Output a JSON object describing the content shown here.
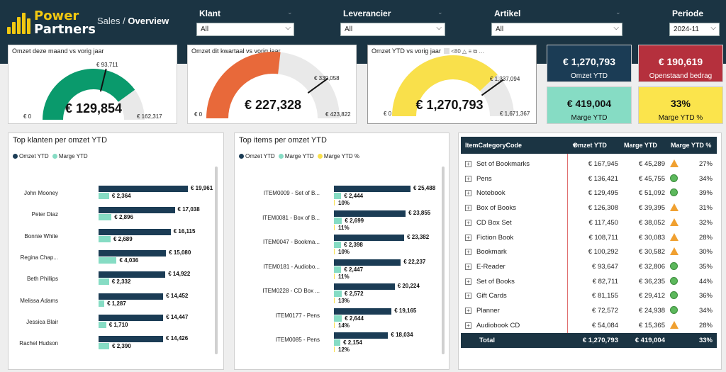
{
  "header": {
    "logo_line1": "Power",
    "logo_line2": "Partners",
    "breadcrumb_section": "Sales /",
    "breadcrumb_page": "Overview",
    "colors": {
      "bg": "#1b3443",
      "brand": "#f2c811"
    }
  },
  "filters": {
    "klant": {
      "label": "Klant",
      "value": "All"
    },
    "leverancier": {
      "label": "Leverancier",
      "value": "All"
    },
    "artikel": {
      "label": "Artikel",
      "value": "All"
    },
    "periode": {
      "label": "Periode",
      "value": "2024-11"
    }
  },
  "gauges": [
    {
      "title": "Omzet deze maand vs vorig jaar",
      "value": "€ 129,854",
      "target": "€ 93,711",
      "min": "€ 0",
      "max": "€ 162,317",
      "fraction": 0.8,
      "target_fraction": 0.577,
      "color": "#0a9a6c"
    },
    {
      "title": "Omzet dit kwartaal vs vorig jaar",
      "value": "€ 227,328",
      "target": "€ 339,058",
      "min": "€ 0",
      "max": "€ 423,822",
      "fraction": 0.536,
      "target_fraction": 0.8,
      "color": "#e8693a"
    },
    {
      "title": "Omzet YTD vs vorig jaar",
      "value": "€ 1,270,793",
      "target": "€ 1,337,094",
      "min": "€ 0",
      "max": "€ 1,671,367",
      "fraction": 0.76,
      "target_fraction": 0.8,
      "color": "#f9e04b",
      "toolbar_text": "<80"
    }
  ],
  "kpis": [
    {
      "value": "€ 1,270,793",
      "label": "Omzet YTD",
      "bg": "#1b3c55",
      "fg": "#ffffff"
    },
    {
      "value": "€ 190,619",
      "label": "Openstaand bedrag",
      "bg": "#b5303d",
      "fg": "#ffffff"
    },
    {
      "value": "€ 419,004",
      "label": "Marge YTD",
      "bg": "#86dcc4",
      "fg": "#111111"
    },
    {
      "value": "33%",
      "label": "Marge YTD %",
      "bg": "#fbe44c",
      "fg": "#111111"
    }
  ],
  "top_klanten": {
    "title": "Top klanten per omzet YTD",
    "legend": [
      "Omzet YTD",
      "Marge YTD"
    ],
    "rows": [
      {
        "name": "John Mooney",
        "omzet": "€ 19,961",
        "marge": "€ 2,364",
        "omzet_v": 19961,
        "marge_v": 2364
      },
      {
        "name": "Peter Diaz",
        "omzet": "€ 17,038",
        "marge": "€ 2,896",
        "omzet_v": 17038,
        "marge_v": 2896
      },
      {
        "name": "Bonnie White",
        "omzet": "€ 16,115",
        "marge": "€ 2,689",
        "omzet_v": 16115,
        "marge_v": 2689
      },
      {
        "name": "Regina Chap...",
        "omzet": "€ 15,080",
        "marge": "€ 4,036",
        "omzet_v": 15080,
        "marge_v": 4036
      },
      {
        "name": "Beth Phillips",
        "omzet": "€ 14,922",
        "marge": "€ 2,332",
        "omzet_v": 14922,
        "marge_v": 2332
      },
      {
        "name": "Melissa Adams",
        "omzet": "€ 14,452",
        "marge": "€ 1,287",
        "omzet_v": 14452,
        "marge_v": 1287
      },
      {
        "name": "Jessica Blair",
        "omzet": "€ 14,447",
        "marge": "€ 1,710",
        "omzet_v": 14447,
        "marge_v": 1710
      },
      {
        "name": "Rachel Hudson",
        "omzet": "€ 14,426",
        "marge": "€ 2,390",
        "omzet_v": 14426,
        "marge_v": 2390
      }
    ]
  },
  "top_items": {
    "title": "Top items per omzet YTD",
    "legend": [
      "Omzet YTD",
      "Marge YTD",
      "Marge YTD %"
    ],
    "rows": [
      {
        "name": "ITEM0009 - Set of B...",
        "omzet": "€ 25,488",
        "marge": "€ 2,444",
        "pct": "10%",
        "omzet_v": 25488,
        "marge_v": 2444
      },
      {
        "name": "ITEM0081 - Box of B...",
        "omzet": "€ 23,855",
        "marge": "€ 2,699",
        "pct": "11%",
        "omzet_v": 23855,
        "marge_v": 2699
      },
      {
        "name": "ITEM0047 - Bookma...",
        "omzet": "€ 23,382",
        "marge": "€ 2,398",
        "pct": "10%",
        "omzet_v": 23382,
        "marge_v": 2398
      },
      {
        "name": "ITEM0181 - Audiobo...",
        "omzet": "€ 22,237",
        "marge": "€ 2,447",
        "pct": "11%",
        "omzet_v": 22237,
        "marge_v": 2447
      },
      {
        "name": "ITEM0228 - CD Box ...",
        "omzet": "€ 20,224",
        "marge": "€ 2,572",
        "pct": "13%",
        "omzet_v": 20224,
        "marge_v": 2572
      },
      {
        "name": "ITEM0177 - Pens",
        "omzet": "€ 19,165",
        "marge": "€ 2,644",
        "pct": "14%",
        "omzet_v": 19165,
        "marge_v": 2644
      },
      {
        "name": "ITEM0085 - Pens",
        "omzet": "€ 18,034",
        "marge": "€ 2,154",
        "pct": "12%",
        "omzet_v": 18034,
        "marge_v": 2154
      }
    ]
  },
  "table": {
    "headers": [
      "ItemCategoryCode",
      "Omzet YTD",
      "Marge YTD",
      "Marge YTD %"
    ],
    "rows": [
      {
        "cat": "Set of Bookmarks",
        "omzet": "€ 167,945",
        "marge": "€ 45,289",
        "pct": "27%",
        "icon": "triangle"
      },
      {
        "cat": "Pens",
        "omzet": "€ 136,421",
        "marge": "€ 45,755",
        "pct": "34%",
        "icon": "circle"
      },
      {
        "cat": "Notebook",
        "omzet": "€ 129,495",
        "marge": "€ 51,092",
        "pct": "39%",
        "icon": "circle"
      },
      {
        "cat": "Box of Books",
        "omzet": "€ 126,308",
        "marge": "€ 39,395",
        "pct": "31%",
        "icon": "triangle"
      },
      {
        "cat": "CD Box Set",
        "omzet": "€ 117,450",
        "marge": "€ 38,052",
        "pct": "32%",
        "icon": "triangle"
      },
      {
        "cat": "Fiction Book",
        "omzet": "€ 108,711",
        "marge": "€ 30,083",
        "pct": "28%",
        "icon": "triangle"
      },
      {
        "cat": "Bookmark",
        "omzet": "€ 100,292",
        "marge": "€ 30,582",
        "pct": "30%",
        "icon": "triangle"
      },
      {
        "cat": "E-Reader",
        "omzet": "€ 93,647",
        "marge": "€ 32,806",
        "pct": "35%",
        "icon": "circle"
      },
      {
        "cat": "Set of Books",
        "omzet": "€ 82,711",
        "marge": "€ 36,235",
        "pct": "44%",
        "icon": "circle"
      },
      {
        "cat": "Gift Cards",
        "omzet": "€ 81,155",
        "marge": "€ 29,412",
        "pct": "36%",
        "icon": "circle"
      },
      {
        "cat": "Planner",
        "omzet": "€ 72,572",
        "marge": "€ 24,938",
        "pct": "34%",
        "icon": "circle"
      },
      {
        "cat": "Audiobook CD",
        "omzet": "€ 54,084",
        "marge": "€ 15,365",
        "pct": "28%",
        "icon": "triangle"
      }
    ],
    "total": {
      "label": "Total",
      "omzet": "€ 1,270,793",
      "marge": "€ 419,004",
      "pct": "33%"
    }
  }
}
